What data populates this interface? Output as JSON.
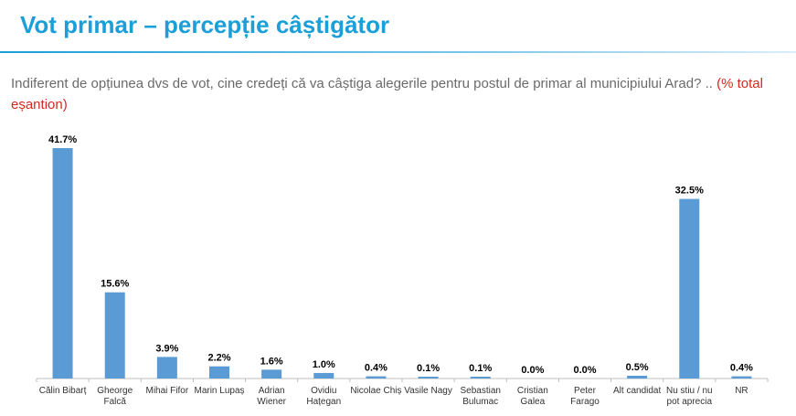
{
  "title": "Vot primar – percepție câștigător",
  "question": {
    "text": "Indiferent de opțiunea dvs de vot, cine credeți că va câștiga alegerile pentru postul de primar al municipiului Arad? ..",
    "note": "(% total eșantion)"
  },
  "chart_data": {
    "type": "bar",
    "categories": [
      [
        "Călin Bibarț"
      ],
      [
        "Gheorge",
        "Falcă"
      ],
      [
        "Mihai Fifor"
      ],
      [
        "Marin Lupaș"
      ],
      [
        "Adrian",
        "Wiener"
      ],
      [
        "Ovidiu",
        "Hațegan"
      ],
      [
        "Nicolae Chiș"
      ],
      [
        "Vasile Nagy"
      ],
      [
        "Sebastian",
        "Bulumac"
      ],
      [
        "Cristian",
        "Galea"
      ],
      [
        "Peter",
        "Farago"
      ],
      [
        "Alt candidat"
      ],
      [
        "Nu stiu / nu",
        "pot aprecia"
      ],
      [
        "NR"
      ]
    ],
    "values": [
      41.7,
      15.6,
      3.9,
      2.2,
      1.6,
      1.0,
      0.4,
      0.1,
      0.1,
      0.0,
      0.0,
      0.5,
      32.5,
      0.4
    ],
    "value_labels": [
      "41.7%",
      "15.6%",
      "3.9%",
      "2.2%",
      "1.6%",
      "1.0%",
      "0.4%",
      "0.1%",
      "0.1%",
      "0.0%",
      "0.0%",
      "0.5%",
      "32.5%",
      "0.4%"
    ],
    "bar_color": "#5b9bd5",
    "ylim": [
      0,
      41.7
    ],
    "grid": false,
    "legend": "none"
  }
}
